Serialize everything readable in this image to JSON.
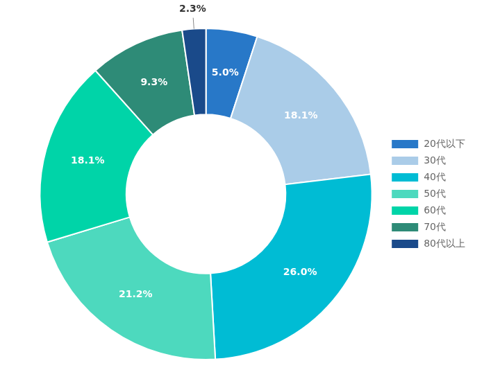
{
  "chart_data": {
    "type": "donut",
    "categories": [
      "20代以下",
      "30代",
      "40代",
      "50代",
      "60代",
      "70代",
      "80代以上"
    ],
    "values": [
      5.0,
      18.1,
      26.0,
      21.2,
      18.1,
      9.3,
      2.3
    ],
    "value_labels": [
      "5.0%",
      "18.1%",
      "26.0%",
      "21.2%",
      "18.1%",
      "9.3%",
      "2.3%"
    ],
    "colors": [
      "#2878c8",
      "#aacce8",
      "#00bcd4",
      "#4dd9be",
      "#00d4a8",
      "#2e8b77",
      "#1a4a8a"
    ],
    "data_labels": true,
    "legend": "right"
  }
}
